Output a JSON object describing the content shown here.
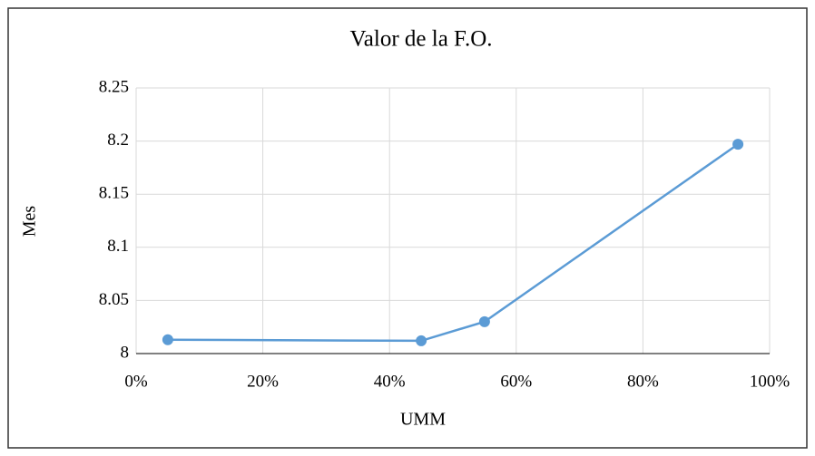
{
  "chart_data": {
    "type": "line",
    "title": "Valor de la F.O.",
    "xlabel": "UMM",
    "ylabel": "Mes",
    "x": [
      5,
      45,
      55,
      95
    ],
    "series": [
      {
        "name": "Valor de la F.O.",
        "color": "#5b9bd5",
        "values": [
          8.013,
          8.012,
          8.03,
          8.197
        ]
      }
    ],
    "xlim": [
      0,
      100
    ],
    "xticks": [
      {
        "value": 0,
        "label": "0%"
      },
      {
        "value": 20,
        "label": "20%"
      },
      {
        "value": 40,
        "label": "40%"
      },
      {
        "value": 60,
        "label": "60%"
      },
      {
        "value": 80,
        "label": "80%"
      },
      {
        "value": 100,
        "label": "100%"
      }
    ],
    "ylim": [
      8,
      8.25
    ],
    "yticks": [
      8,
      8.05,
      8.1,
      8.15,
      8.2,
      8.25
    ],
    "grid": true,
    "markers": true
  }
}
